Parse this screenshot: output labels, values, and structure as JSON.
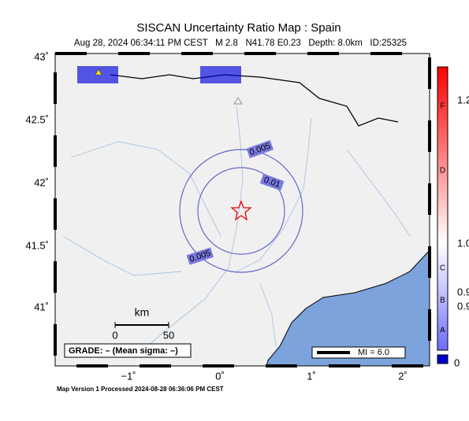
{
  "header": {
    "title": "SISCAN Uncertainty Ratio Map : Spain",
    "subtitle": "Aug 28, 2024 06:34:11 PM CEST   M 2.8   N41.78 E0.23   Depth: 8.0km   ID:25325"
  },
  "map": {
    "lat_ticks": [
      "43˚",
      "42.5˚",
      "42˚",
      "41.5˚",
      "41˚"
    ],
    "lon_ticks": [
      "−1˚",
      "0˚",
      "1˚",
      "2˚"
    ],
    "contour_labels": [
      "0.005",
      "0.01",
      "0.005"
    ],
    "scale": {
      "unit": "km",
      "start": "0",
      "end": "50"
    },
    "grade": "GRADE: – (Mean sigma: –)",
    "intensity": "MI = 6.0"
  },
  "colorbar": {
    "letters": [
      "F",
      "D",
      "C",
      "B",
      "A"
    ],
    "values": [
      "1.2",
      "1.0",
      "0.9",
      "0.9"
    ],
    "bottom": "0"
  },
  "footer": "Map Version 1 Processed 2024-08-28 06:36:06 PM CEST"
}
